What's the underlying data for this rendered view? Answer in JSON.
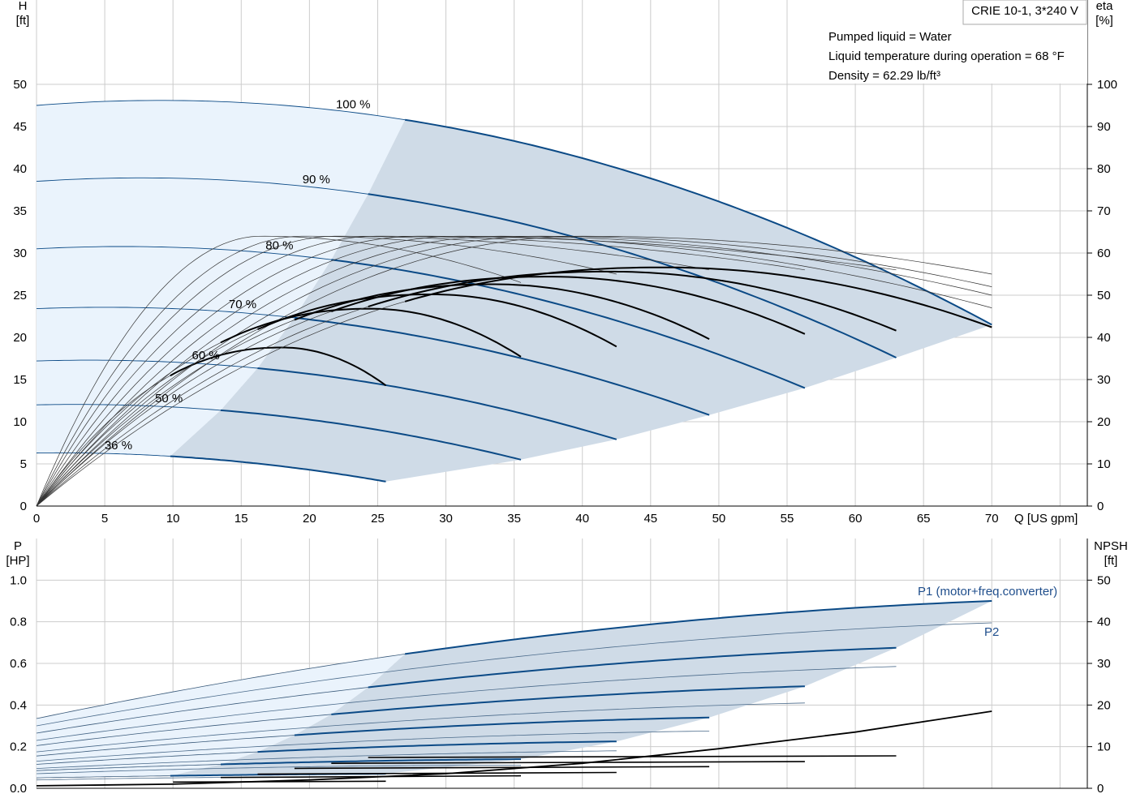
{
  "colors": {
    "grid": "#cccccc",
    "axis": "#000000",
    "light_region": "#eaf3fc",
    "op_region": "#cfdbe7",
    "blue_curve": "#0b4a86",
    "thin_curve": "#333333",
    "black_curve": "#000000",
    "label_blue": "#1f4e8c"
  },
  "header": {
    "model": "CRIE 10-1, 3*240 V",
    "info_lines": [
      "Pumped liquid = Water",
      "Liquid temperature during operation = 68 °F",
      "Density = 62.29 lb/ft³"
    ]
  },
  "chart_data": [
    {
      "type": "line",
      "name": "pump-head-curves",
      "x_axis": {
        "label": "Q [US gpm]",
        "range": [
          0,
          77
        ],
        "ticks": [
          0,
          5,
          10,
          15,
          20,
          25,
          30,
          35,
          40,
          45,
          50,
          55,
          60,
          65,
          70
        ]
      },
      "y_axis_left": {
        "label_top": "H",
        "label_unit": "[ft]",
        "range": [
          0,
          60
        ],
        "ticks": [
          0,
          5,
          10,
          15,
          20,
          25,
          30,
          35,
          40,
          45,
          50
        ]
      },
      "y_axis_right": {
        "label_top": "eta",
        "label_unit": "[%]",
        "range": [
          0,
          120
        ],
        "ticks": [
          0,
          10,
          20,
          30,
          40,
          50,
          60,
          70,
          80,
          90,
          100
        ]
      },
      "grid": true,
      "speed_curves": [
        {
          "label": "100 %",
          "shutoff_head": 47.5,
          "x_min": 27,
          "x_max": 70,
          "head_at_max": 21.5,
          "hump": 0.55
        },
        {
          "label": "90 %",
          "shutoff_head": 38.5,
          "x_min": 24.3,
          "x_max": 63,
          "head_at_max": 17.6,
          "hump": 0.5
        },
        {
          "label": "80 %",
          "shutoff_head": 30.5,
          "x_min": 21.6,
          "x_max": 56.3,
          "head_at_max": 14.0,
          "hump": 0.45
        },
        {
          "label": "70 %",
          "shutoff_head": 23.4,
          "x_min": 18.9,
          "x_max": 49.3,
          "head_at_max": 10.8,
          "hump": 0.4
        },
        {
          "label": "60 %",
          "shutoff_head": 17.2,
          "x_min": 16.2,
          "x_max": 42.5,
          "head_at_max": 7.9,
          "hump": 0.35
        },
        {
          "label": "50 %",
          "shutoff_head": 12.0,
          "x_min": 13.5,
          "x_max": 35.5,
          "head_at_max": 5.5,
          "hump": 0.3
        },
        {
          "label": "36 %",
          "shutoff_head": 6.3,
          "x_min": 9.8,
          "x_max": 25.6,
          "head_at_max": 2.9,
          "hump": 0.2
        }
      ],
      "efficiency_curves": [
        {
          "x_start": 9.8,
          "x_peak": 18,
          "peak_eta": 37.6,
          "x_end": 25.6,
          "eta_end": 28.6
        },
        {
          "x_start": 13.5,
          "x_peak": 24.5,
          "peak_eta": 46.8,
          "x_end": 35.5,
          "eta_end": 35.4
        },
        {
          "x_start": 16.2,
          "x_peak": 29,
          "peak_eta": 50.2,
          "x_end": 42.5,
          "eta_end": 37.8
        },
        {
          "x_start": 18.9,
          "x_peak": 33.5,
          "peak_eta": 52.6,
          "x_end": 49.3,
          "eta_end": 39.6
        },
        {
          "x_start": 21.6,
          "x_peak": 37.5,
          "peak_eta": 54.4,
          "x_end": 56.3,
          "eta_end": 40.8
        },
        {
          "x_start": 24.3,
          "x_peak": 42,
          "peak_eta": 55.6,
          "x_end": 63,
          "eta_end": 41.6
        },
        {
          "x_start": 27,
          "x_peak": 46,
          "peak_eta": 56.6,
          "x_end": 70,
          "eta_end": 42.4
        }
      ],
      "system_curves": [
        {
          "x_peak": 16.5,
          "x_end": 35.5,
          "eta_end": 53
        },
        {
          "x_peak": 19.5,
          "x_end": 42.5,
          "eta_end": 55
        },
        {
          "x_peak": 22,
          "x_end": 49.3,
          "eta_end": 56
        },
        {
          "x_peak": 25,
          "x_end": 56.3,
          "eta_end": 56
        },
        {
          "x_peak": 28,
          "x_end": 63,
          "eta_end": 56
        },
        {
          "x_peak": 31,
          "x_end": 70,
          "eta_end": 47
        },
        {
          "x_peak": 34,
          "x_end": 70,
          "eta_end": 50
        },
        {
          "x_peak": 37,
          "x_end": 70,
          "eta_end": 52
        },
        {
          "x_peak": 40,
          "x_end": 70,
          "eta_end": 55
        }
      ]
    },
    {
      "type": "line",
      "name": "power-npsh-curves",
      "x_axis": {
        "range": [
          0,
          77
        ]
      },
      "y_axis_left": {
        "label_top": "P",
        "label_unit": "[HP]",
        "range": [
          0,
          1.0
        ],
        "ticks": [
          "0.0",
          "0.2",
          "0.4",
          "0.6",
          "0.8",
          "1.0"
        ]
      },
      "y_axis_right": {
        "label_top": "NPSH",
        "label_unit": "[ft]",
        "range": [
          0,
          50
        ],
        "ticks": [
          0,
          10,
          20,
          30,
          40,
          50
        ]
      },
      "grid": true,
      "series_labels": [
        "P1 (motor+freq.converter)",
        "P2"
      ],
      "power_curves_p1": [
        {
          "p0": 0.335,
          "x_min": 27,
          "p_min": 0.645,
          "x_max": 70,
          "p_max": 0.9
        },
        {
          "p0": 0.265,
          "x_min": 24.3,
          "p_min": 0.485,
          "x_max": 63,
          "p_max": 0.675
        },
        {
          "p0": 0.205,
          "x_min": 21.6,
          "p_min": 0.355,
          "x_max": 56.3,
          "p_max": 0.49
        },
        {
          "p0": 0.155,
          "x_min": 18.9,
          "p_min": 0.255,
          "x_max": 49.3,
          "p_max": 0.34
        },
        {
          "p0": 0.115,
          "x_min": 16.2,
          "p_min": 0.175,
          "x_max": 42.5,
          "p_max": 0.225
        },
        {
          "p0": 0.085,
          "x_min": 13.5,
          "p_min": 0.115,
          "x_max": 35.5,
          "p_max": 0.14
        },
        {
          "p0": 0.05,
          "x_min": 9.8,
          "p_min": 0.06,
          "x_max": 25.6,
          "p_max": 0.07
        }
      ],
      "power_curves_p2": [
        {
          "p0": 0.3,
          "x_min": 27,
          "p_min": 0.57,
          "x_max": 70,
          "p_max": 0.795
        },
        {
          "p0": 0.23,
          "x_min": 24.3,
          "p_min": 0.42,
          "x_max": 63,
          "p_max": 0.585
        },
        {
          "p0": 0.175,
          "x_min": 21.6,
          "p_min": 0.3,
          "x_max": 56.3,
          "p_max": 0.41
        },
        {
          "p0": 0.13,
          "x_min": 18.9,
          "p_min": 0.21,
          "x_max": 49.3,
          "p_max": 0.275
        },
        {
          "p0": 0.095,
          "x_min": 16.2,
          "p_min": 0.14,
          "x_max": 42.5,
          "p_max": 0.18
        },
        {
          "p0": 0.07,
          "x_min": 9.8,
          "p_min": 0.09,
          "x_max": 35.5,
          "p_max": 0.11
        },
        {
          "p0": 0.04,
          "x_min": 9.8,
          "p_min": 0.05,
          "x_max": 25.6,
          "p_max": 0.055
        }
      ],
      "npsh_curves": [
        {
          "x": [
            10,
            25.6
          ],
          "npsh": [
            1.5,
            1.7
          ]
        },
        {
          "x": [
            13.5,
            35.5
          ],
          "npsh": [
            2.6,
            3.0
          ]
        },
        {
          "x": [
            16.2,
            42.5
          ],
          "npsh": [
            3.4,
            3.8
          ]
        },
        {
          "x": [
            18.9,
            49.3
          ],
          "npsh": [
            4.8,
            5.2
          ]
        },
        {
          "x": [
            21.6,
            56.3
          ],
          "npsh": [
            6.0,
            6.4
          ]
        },
        {
          "x": [
            24.3,
            63
          ],
          "npsh": [
            7.4,
            7.8
          ]
        },
        {
          "x": [
            0,
            10,
            20,
            30,
            40,
            50,
            60,
            70
          ],
          "npsh": [
            0.6,
            1.0,
            2.0,
            3.5,
            6.0,
            9.5,
            13.5,
            18.5
          ]
        }
      ]
    }
  ]
}
